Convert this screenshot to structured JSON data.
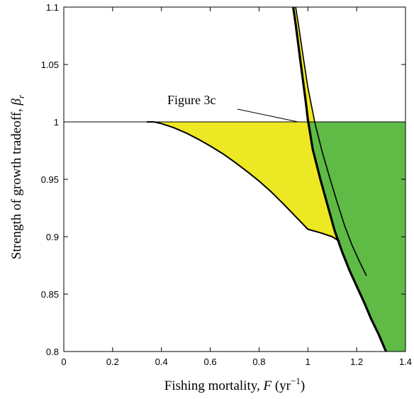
{
  "chart_data": {
    "type": "area",
    "xlabel": "Fishing mortality, F (yr⁻¹)",
    "xlabel_parts": {
      "text": "Fishing mortality, ",
      "var": "F",
      "unit_open": " (yr",
      "unit_sup": "−1",
      "unit_close": ")"
    },
    "ylabel": "Strength of growth tradeoff, βr",
    "ylabel_parts": {
      "text": "Strength of growth tradeoff, ",
      "var": "β",
      "sub": "r"
    },
    "xlim": [
      0,
      1.4
    ],
    "ylim": [
      0.8,
      1.1
    ],
    "x_ticks": [
      0,
      0.2,
      0.4,
      0.6,
      0.8,
      1,
      1.2,
      1.4
    ],
    "x_tick_labels": [
      "0",
      "0.2",
      "0.4",
      "0.6",
      "0.8",
      "1",
      "1.2",
      "1.4"
    ],
    "y_ticks": [
      0.8,
      0.85,
      0.9,
      0.95,
      1,
      1.05,
      1.1
    ],
    "y_tick_labels": [
      "0.8",
      "0.85",
      "0.9",
      "0.95",
      "1",
      "1.05",
      "1.1"
    ],
    "colors": {
      "yellow": "#ede824",
      "green": "#5fba46",
      "line": "#000000"
    },
    "annotation": {
      "text": "Figure 3c",
      "points_to": [
        0.98,
        1.0
      ]
    },
    "series": [
      {
        "role": "reference-line",
        "x": [
          0,
          1.4
        ],
        "y": [
          1,
          1
        ]
      },
      {
        "role": "lower-boundary-curve",
        "x": [
          0.34,
          0.37,
          0.4,
          0.45,
          0.5,
          0.55,
          0.6,
          0.65,
          0.7,
          0.75,
          0.8,
          0.85,
          0.9,
          0.95,
          1.0,
          1.05,
          1.1,
          1.13
        ],
        "y": [
          1.0,
          1.0,
          0.9985,
          0.995,
          0.9905,
          0.985,
          0.979,
          0.9725,
          0.965,
          0.957,
          0.9485,
          0.939,
          0.9285,
          0.9175,
          0.9065,
          0.9035,
          0.9,
          0.896
        ]
      },
      {
        "role": "thick-boundary-curve",
        "x": [
          0.94,
          0.95,
          0.97,
          0.99,
          1.0,
          1.02,
          1.05,
          1.08,
          1.11,
          1.14,
          1.17,
          1.2,
          1.23,
          1.26,
          1.29,
          1.32
        ],
        "y": [
          1.1,
          1.085,
          1.052,
          1.02,
          1.002,
          0.976,
          0.951,
          0.928,
          0.905,
          0.887,
          0.871,
          0.857,
          0.843,
          0.828,
          0.815,
          0.8
        ]
      },
      {
        "role": "thin-boundary-curve",
        "x": [
          0.95,
          0.96,
          0.98,
          1.0,
          1.03,
          1.06,
          1.09,
          1.12,
          1.15,
          1.18,
          1.21,
          1.24
        ],
        "y": [
          1.1,
          1.087,
          1.058,
          1.03,
          0.998,
          0.973,
          0.951,
          0.93,
          0.91,
          0.893,
          0.879,
          0.866
        ]
      }
    ],
    "regions": [
      {
        "fill": "yellow",
        "polygon_x": [
          0.34,
          0.37,
          0.4,
          0.45,
          0.5,
          0.55,
          0.6,
          0.65,
          0.7,
          0.75,
          0.8,
          0.85,
          0.9,
          0.95,
          1.0,
          1.05,
          1.1,
          1.13,
          1.11,
          1.08,
          1.05,
          1.02,
          1.0,
          0.99,
          0.97,
          0.95,
          0.94,
          0.95,
          0.96,
          0.98,
          1.0,
          1.03
        ],
        "polygon_y": [
          1.0,
          1.0,
          0.9985,
          0.995,
          0.9905,
          0.985,
          0.979,
          0.9725,
          0.965,
          0.957,
          0.9485,
          0.939,
          0.9285,
          0.9175,
          0.9065,
          0.9035,
          0.9,
          0.896,
          0.905,
          0.928,
          0.951,
          0.976,
          1.002,
          1.02,
          1.052,
          1.085,
          1.1,
          1.1,
          1.087,
          1.058,
          1.03,
          1.0
        ]
      },
      {
        "fill": "green",
        "polygon_x": [
          0.995,
          1.4,
          1.4,
          1.32,
          1.29,
          1.26,
          1.23,
          1.2,
          1.17,
          1.14,
          1.11,
          1.08,
          1.05,
          1.02,
          1.0
        ],
        "polygon_y": [
          1.0,
          1.0,
          0.8,
          0.8,
          0.815,
          0.828,
          0.843,
          0.857,
          0.871,
          0.887,
          0.905,
          0.928,
          0.951,
          0.976,
          1.0
        ]
      }
    ]
  }
}
